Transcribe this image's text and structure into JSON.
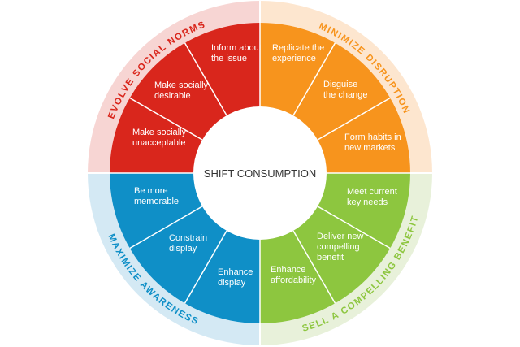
{
  "center": "SHIFT CONSUMPTION",
  "quadrants": [
    {
      "title": "EVOLVE SOCIAL NORMS",
      "segments": [
        {
          "lines": [
            "Inform about",
            "the issue"
          ]
        },
        {
          "lines": [
            "Make socially",
            "desirable"
          ]
        },
        {
          "lines": [
            "Make socially",
            "unacceptable"
          ]
        }
      ]
    },
    {
      "title": "MINIMIZE DISRUPTION",
      "segments": [
        {
          "lines": [
            "Replicate the",
            "experience"
          ]
        },
        {
          "lines": [
            "Disguise",
            "the change"
          ]
        },
        {
          "lines": [
            "Form habits in",
            "new markets"
          ]
        }
      ]
    },
    {
      "title": "SELL A COMPELLING BENEFIT",
      "segments": [
        {
          "lines": [
            "Meet current",
            "key needs"
          ]
        },
        {
          "lines": [
            "Deliver new",
            "compelling",
            "benefit"
          ]
        },
        {
          "lines": [
            "Enhance",
            "affordability"
          ]
        }
      ]
    },
    {
      "title": "MAXIMIZE AWARENESS",
      "segments": [
        {
          "lines": [
            "Be more",
            "memorable"
          ]
        },
        {
          "lines": [
            "Constrain",
            "display"
          ]
        },
        {
          "lines": [
            "Enhance",
            "display"
          ]
        }
      ]
    }
  ]
}
